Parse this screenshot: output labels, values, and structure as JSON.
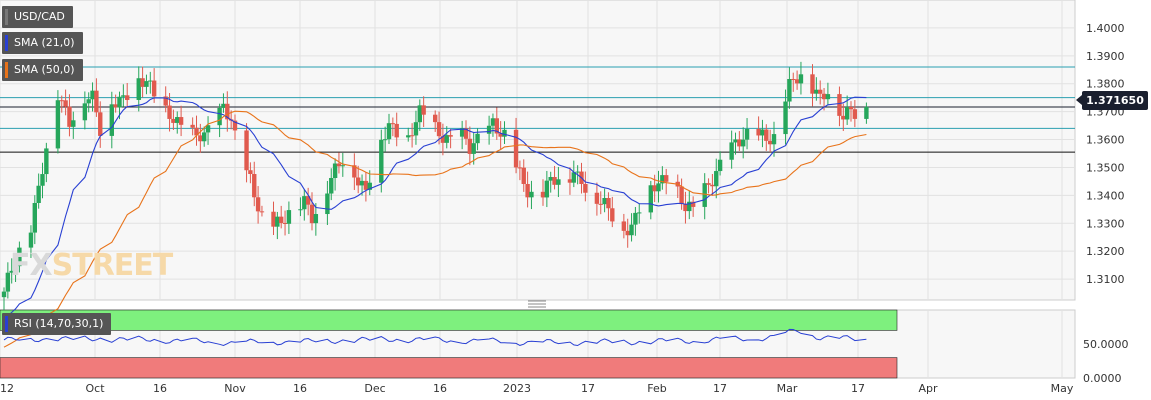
{
  "chart_data": {
    "type": "candlestick",
    "symbol": "USD/CAD",
    "indicators": [
      "SMA (21,0)",
      "SMA (50,0)"
    ],
    "indicator_colors": {
      "sma21": "#2940d3",
      "sma50": "#e8731a"
    },
    "current_price_label": "1.371650",
    "current_price": 1.37165,
    "ylim": [
      1.3025,
      1.41
    ],
    "y_ticks": [
      {
        "value": 1.4,
        "label": "1.4000"
      },
      {
        "value": 1.39,
        "label": "1.3900"
      },
      {
        "value": 1.38,
        "label": "1.3800"
      },
      {
        "value": 1.37,
        "label": "1.3700"
      },
      {
        "value": 1.36,
        "label": "1.3600"
      },
      {
        "value": 1.35,
        "label": "1.3500"
      },
      {
        "value": 1.34,
        "label": "1.3400"
      },
      {
        "value": 1.33,
        "label": "1.3300"
      },
      {
        "value": 1.32,
        "label": "1.3200"
      },
      {
        "value": 1.31,
        "label": "1.3100"
      }
    ],
    "horizontal_lines": [
      {
        "value": 1.386,
        "color": "#2a9fb0"
      },
      {
        "value": 1.375,
        "color": "#2a9fb0"
      },
      {
        "value": 1.364,
        "color": "#2a9fb0"
      },
      {
        "value": 1.3555,
        "color": "#111111"
      }
    ],
    "x_labels": [
      "12",
      "Oct",
      "16",
      "Nov",
      "16",
      "Dec",
      "16",
      "2023",
      "17",
      "Feb",
      "17",
      "Mar",
      "17",
      "Apr",
      "May"
    ],
    "close_anchors": [
      [
        0,
        1.304
      ],
      [
        4,
        1.32
      ],
      [
        7,
        1.33
      ],
      [
        10,
        1.35
      ],
      [
        14,
        1.375
      ],
      [
        17,
        1.367
      ],
      [
        20,
        1.377
      ],
      [
        23,
        1.374
      ],
      [
        25,
        1.362
      ],
      [
        28,
        1.374
      ],
      [
        31,
        1.376
      ],
      [
        34,
        1.381
      ],
      [
        37,
        1.379
      ],
      [
        40,
        1.374
      ],
      [
        43,
        1.371
      ],
      [
        46,
        1.364
      ],
      [
        49,
        1.36
      ],
      [
        52,
        1.362
      ],
      [
        55,
        1.369
      ],
      [
        57,
        1.372
      ],
      [
        59,
        1.366
      ],
      [
        61,
        1.352
      ],
      [
        64,
        1.346
      ],
      [
        67,
        1.334
      ],
      [
        70,
        1.329
      ],
      [
        72,
        1.328
      ],
      [
        75,
        1.336
      ],
      [
        78,
        1.34
      ],
      [
        80,
        1.333
      ],
      [
        83,
        1.338
      ],
      [
        86,
        1.348
      ],
      [
        89,
        1.357
      ],
      [
        92,
        1.346
      ],
      [
        94,
        1.34
      ],
      [
        97,
        1.356
      ],
      [
        100,
        1.366
      ],
      [
        103,
        1.363
      ],
      [
        105,
        1.36
      ],
      [
        108,
        1.368
      ],
      [
        111,
        1.366
      ],
      [
        113,
        1.364
      ],
      [
        116,
        1.36
      ],
      [
        118,
        1.362
      ],
      [
        121,
        1.356
      ],
      [
        124,
        1.362
      ],
      [
        127,
        1.367
      ],
      [
        129,
        1.362
      ],
      [
        131,
        1.358
      ],
      [
        133,
        1.349
      ],
      [
        136,
        1.343
      ],
      [
        139,
        1.34
      ],
      [
        142,
        1.344
      ],
      [
        145,
        1.345
      ],
      [
        148,
        1.349
      ],
      [
        150,
        1.347
      ],
      [
        152,
        1.341
      ],
      [
        155,
        1.336
      ],
      [
        158,
        1.333
      ],
      [
        161,
        1.33
      ],
      [
        163,
        1.329
      ],
      [
        166,
        1.338
      ],
      [
        169,
        1.343
      ],
      [
        172,
        1.347
      ],
      [
        175,
        1.342
      ],
      [
        177,
        1.335
      ],
      [
        179,
        1.333
      ],
      [
        181,
        1.339
      ],
      [
        183,
        1.345
      ],
      [
        186,
        1.352
      ],
      [
        188,
        1.355
      ],
      [
        191,
        1.358
      ],
      [
        194,
        1.362
      ],
      [
        197,
        1.363
      ],
      [
        200,
        1.36
      ],
      [
        202,
        1.368
      ],
      [
        204,
        1.378
      ],
      [
        206,
        1.383
      ],
      [
        208,
        1.386
      ],
      [
        210,
        1.38
      ],
      [
        212,
        1.374
      ],
      [
        214,
        1.376
      ],
      [
        216,
        1.373
      ],
      [
        218,
        1.368
      ],
      [
        220,
        1.373
      ],
      [
        222,
        1.37
      ],
      [
        224,
        1.3717
      ]
    ],
    "rsi": {
      "label": "RSI (14,70,30,1)",
      "ylim": [
        0,
        100
      ],
      "overbought": 70,
      "oversold": 30,
      "y_ticks": [
        {
          "value": 50,
          "label": "50.0000"
        },
        {
          "value": 0,
          "label": "0.0000"
        }
      ],
      "values_anchors": [
        [
          0,
          56
        ],
        [
          20,
          58
        ],
        [
          40,
          56
        ],
        [
          60,
          52
        ],
        [
          80,
          54
        ],
        [
          100,
          57
        ],
        [
          120,
          55
        ],
        [
          140,
          52
        ],
        [
          160,
          53
        ],
        [
          180,
          55
        ],
        [
          200,
          60
        ],
        [
          206,
          70
        ],
        [
          212,
          60
        ],
        [
          224,
          56
        ]
      ]
    },
    "colors": {
      "up": "#26a65b",
      "down": "#e05a4e",
      "grid": "#e2e2e2",
      "rsi_overbought": "#7ef07e",
      "rsi_oversold": "#f07b7b",
      "rsi_line": "#2940d3"
    }
  }
}
